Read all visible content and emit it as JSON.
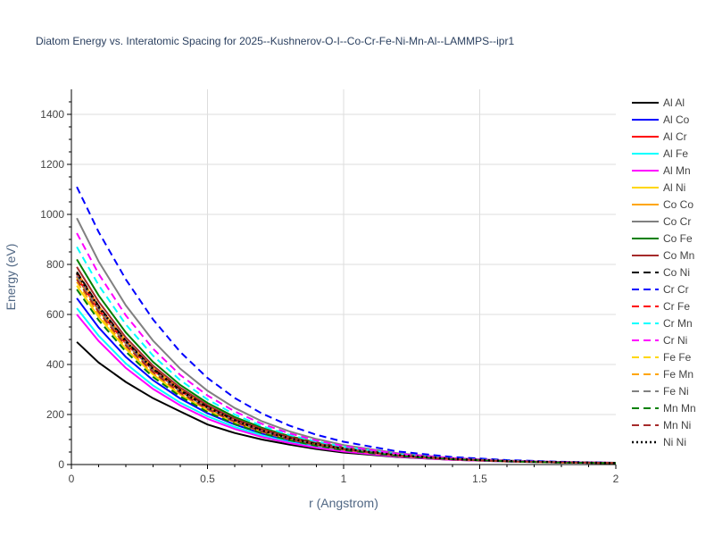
{
  "chart_data": {
    "type": "line",
    "title": "Diatom Energy vs. Interatomic Spacing for 2025--Kushnerov-O-I--Co-Cr-Fe-Ni-Mn-Al--LAMMPS--ipr1",
    "xlabel": "r (Angstrom)",
    "ylabel": "Energy (eV)",
    "xlim": [
      0,
      2
    ],
    "ylim": [
      0,
      1500
    ],
    "xticks": [
      "0",
      "0.5",
      "1",
      "1.5",
      "2"
    ],
    "yticks": [
      "0",
      "200",
      "400",
      "600",
      "800",
      "1000",
      "1200",
      "1400"
    ],
    "grid": true,
    "legend_position": "right",
    "x": [
      0.02,
      0.1,
      0.2,
      0.3,
      0.4,
      0.5,
      0.6,
      0.7,
      0.8,
      0.9,
      1.0,
      1.2,
      1.4,
      1.6,
      1.8,
      2.0
    ],
    "series": [
      {
        "name": "Al Al",
        "color": "#000000",
        "dash": "solid",
        "values": [
          490,
          408,
          330,
          265,
          212,
          160,
          126,
          100,
          80,
          62,
          48,
          30,
          19,
          12,
          8,
          6
        ]
      },
      {
        "name": "Al Co",
        "color": "#0000ff",
        "dash": "solid",
        "values": [
          665,
          548,
          430,
          337,
          264,
          205,
          160,
          124,
          96,
          74,
          57,
          34,
          21,
          13,
          8,
          6
        ]
      },
      {
        "name": "Al Cr",
        "color": "#ff0000",
        "dash": "solid",
        "values": [
          750,
          618,
          484,
          378,
          294,
          228,
          177,
          137,
          106,
          82,
          63,
          37,
          22,
          14,
          9,
          6
        ]
      },
      {
        "name": "Al Fe",
        "color": "#00ffff",
        "dash": "solid",
        "values": [
          625,
          515,
          404,
          316,
          247,
          193,
          150,
          116,
          90,
          70,
          54,
          32,
          20,
          12,
          8,
          6
        ]
      },
      {
        "name": "Al Mn",
        "color": "#ff00ff",
        "dash": "solid",
        "values": [
          600,
          494,
          386,
          302,
          236,
          183,
          142,
          110,
          86,
          67,
          52,
          31,
          19,
          12,
          8,
          6
        ]
      },
      {
        "name": "Al Ni",
        "color": "#ffd700",
        "dash": "solid",
        "values": [
          715,
          590,
          462,
          360,
          280,
          218,
          169,
          131,
          101,
          78,
          60,
          35,
          21,
          13,
          8,
          6
        ]
      },
      {
        "name": "Co Co",
        "color": "#ffa500",
        "dash": "solid",
        "values": [
          770,
          634,
          495,
          385,
          299,
          231,
          179,
          138,
          107,
          83,
          64,
          37,
          22,
          14,
          9,
          6
        ]
      },
      {
        "name": "Co Cr",
        "color": "#808080",
        "dash": "solid",
        "values": [
          985,
          812,
          636,
          495,
          383,
          295,
          226,
          173,
          133,
          102,
          78,
          45,
          26,
          16,
          10,
          7
        ]
      },
      {
        "name": "Co Fe",
        "color": "#008000",
        "dash": "solid",
        "values": [
          820,
          676,
          528,
          410,
          318,
          246,
          190,
          147,
          114,
          88,
          68,
          39,
          23,
          14,
          9,
          6
        ]
      },
      {
        "name": "Co Mn",
        "color": "#a52a2a",
        "dash": "solid",
        "values": [
          790,
          651,
          508,
          395,
          307,
          237,
          183,
          142,
          110,
          85,
          66,
          38,
          23,
          14,
          9,
          6
        ]
      },
      {
        "name": "Co Ni",
        "color": "#000000",
        "dash": "dash",
        "values": [
          770,
          634,
          495,
          384,
          298,
          230,
          178,
          137,
          106,
          82,
          63,
          37,
          22,
          14,
          9,
          6
        ]
      },
      {
        "name": "Cr Cr",
        "color": "#0000ff",
        "dash": "dash",
        "values": [
          1110,
          930,
          740,
          580,
          450,
          346,
          266,
          204,
          156,
          119,
          91,
          52,
          30,
          18,
          11,
          7
        ]
      },
      {
        "name": "Cr Fe",
        "color": "#ff0000",
        "dash": "dash",
        "values": [
          760,
          626,
          489,
          380,
          295,
          228,
          176,
          136,
          105,
          81,
          63,
          36,
          22,
          14,
          9,
          6
        ]
      },
      {
        "name": "Cr Mn",
        "color": "#00ffff",
        "dash": "dash",
        "values": [
          870,
          717,
          560,
          435,
          337,
          260,
          200,
          154,
          119,
          92,
          71,
          41,
          24,
          15,
          9,
          6
        ]
      },
      {
        "name": "Cr Ni",
        "color": "#ff00ff",
        "dash": "dash",
        "values": [
          925,
          762,
          596,
          463,
          358,
          276,
          212,
          163,
          125,
          96,
          74,
          43,
          25,
          15,
          10,
          7
        ]
      },
      {
        "name": "Fe Fe",
        "color": "#ffd700",
        "dash": "dash",
        "values": [
          745,
          614,
          480,
          373,
          289,
          223,
          172,
          133,
          103,
          80,
          62,
          36,
          22,
          13,
          9,
          6
        ]
      },
      {
        "name": "Fe Mn",
        "color": "#ffa500",
        "dash": "dash",
        "values": [
          730,
          602,
          470,
          365,
          283,
          219,
          169,
          130,
          101,
          78,
          60,
          35,
          21,
          13,
          8,
          6
        ]
      },
      {
        "name": "Fe Ni",
        "color": "#808080",
        "dash": "dash",
        "values": [
          755,
          622,
          486,
          377,
          292,
          226,
          174,
          134,
          104,
          80,
          62,
          36,
          22,
          14,
          9,
          6
        ]
      },
      {
        "name": "Mn Mn",
        "color": "#008000",
        "dash": "dash",
        "values": [
          700,
          577,
          451,
          350,
          272,
          210,
          162,
          125,
          97,
          75,
          58,
          34,
          21,
          13,
          8,
          6
        ]
      },
      {
        "name": "Mn Ni",
        "color": "#a52a2a",
        "dash": "dash",
        "values": [
          740,
          610,
          476,
          370,
          287,
          222,
          171,
          132,
          102,
          79,
          61,
          36,
          22,
          13,
          9,
          6
        ]
      },
      {
        "name": "Ni Ni",
        "color": "#000000",
        "dash": "dot",
        "values": [
          765,
          630,
          492,
          382,
          296,
          229,
          177,
          136,
          105,
          81,
          63,
          37,
          22,
          14,
          9,
          6
        ]
      }
    ]
  }
}
